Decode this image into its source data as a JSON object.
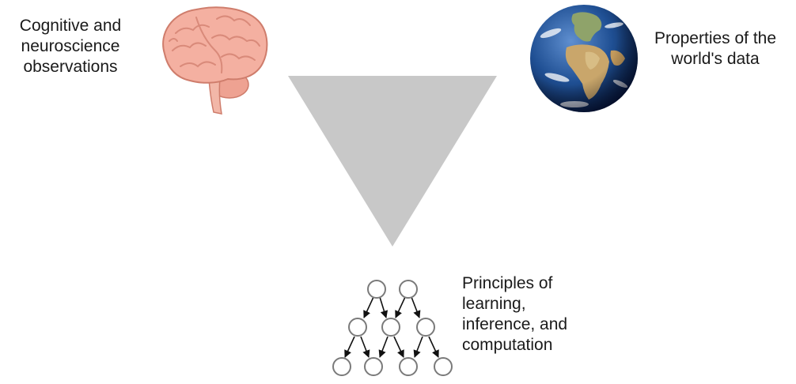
{
  "labels": {
    "brain": [
      "Cognitive and",
      "neuroscience",
      "observations"
    ],
    "world": [
      "Properties of the",
      "world's data"
    ],
    "principles": [
      "Principles of",
      "learning,",
      "inference, and",
      "computation"
    ]
  },
  "icons": {
    "brain": "brain-icon",
    "world": "earth-globe-icon",
    "network": "graphical-model-network-icon"
  },
  "colors": {
    "triangle": "#c8c8c8",
    "brain_fill": "#f1a99a",
    "brain_stroke": "#d4806f",
    "ocean": "#1f4f93",
    "land": "#c9a66b",
    "node_stroke": "#7a7a7a",
    "arrow": "#111111"
  }
}
